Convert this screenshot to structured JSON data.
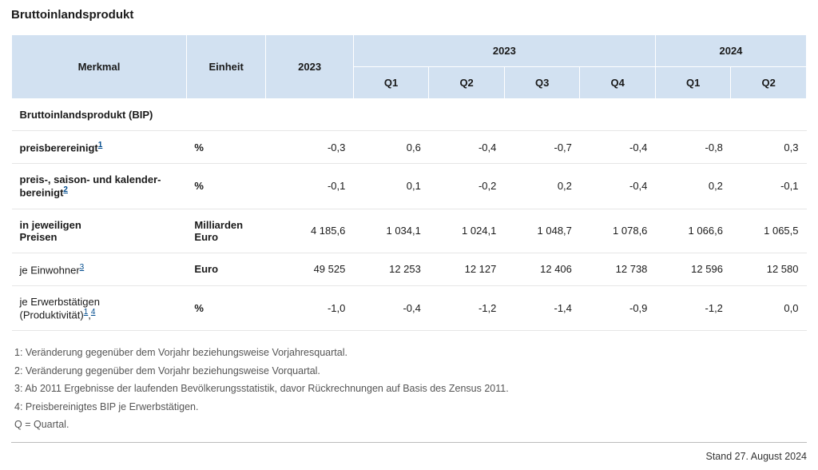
{
  "title": "Bruttoinlandsprodukt",
  "header": {
    "merkmal": "Merkmal",
    "einheit": "Einheit",
    "year": "2023",
    "group1": "2023",
    "group2": "2024",
    "q1": "Q1",
    "q2": "Q2",
    "q3": "Q3",
    "q4": "Q4",
    "q1b": "Q1",
    "q2b": "Q2"
  },
  "section1": "Bruttoinlandsprodukt (BIP)",
  "rows": [
    {
      "label": "preisberereinigt",
      "fn": "1",
      "unit": "%",
      "vals": [
        "-0,3",
        "0,6",
        "-0,4",
        "-0,7",
        "-0,4",
        "-0,8",
        "0,3"
      ]
    },
    {
      "label": "preis-, saison- und kalender­bereinigt",
      "fn": "2",
      "unit": "%",
      "vals": [
        "-0,1",
        "0,1",
        "-0,2",
        "0,2",
        "-0,4",
        "0,2",
        "-0,1"
      ]
    },
    {
      "label_a": "in jeweiligen",
      "label_b": "Preisen",
      "unit_a": "Milliarden",
      "unit_b": "Euro",
      "vals": [
        "4 185,6",
        "1 034,1",
        "1 024,1",
        "1 048,7",
        "1 078,6",
        "1 066,6",
        "1 065,5"
      ]
    },
    {
      "label": "je Einwohner",
      "fn": "3",
      "unit": "Euro",
      "vals": [
        "49 525",
        "12 253",
        "12 127",
        "12 406",
        "12 738",
        "12 596",
        "12 580"
      ]
    },
    {
      "label_a": "je Erwerbstätigen",
      "label_b": "(Produktivität)",
      "fn_a": "1",
      "fn_sep": ",",
      "fn_b": "4",
      "unit": "%",
      "vals": [
        "-1,0",
        "-0,4",
        "-1,2",
        "-1,4",
        "-0,9",
        "-1,2",
        "0,0"
      ]
    }
  ],
  "footnotes": [
    "1: Veränderung gegenüber dem Vorjahr beziehungsweise Vorjahresquartal.",
    "2: Veränderung gegenüber dem Vorjahr beziehungsweise Vorquartal.",
    "3: Ab 2011 Ergebnisse der laufenden Bevölkerungsstatistik, davor Rückrechnungen auf Basis des Zensus 2011.",
    "4: Preisbereinigtes BIP je Erwerbstätigen.",
    "Q = Quartal."
  ],
  "stand": "Stand 27. August 2024",
  "style": {
    "header_bg": "#d2e1f1",
    "row_border": "#e6e6e6",
    "link_color": "#004b8d",
    "footnote_color": "#555555"
  }
}
